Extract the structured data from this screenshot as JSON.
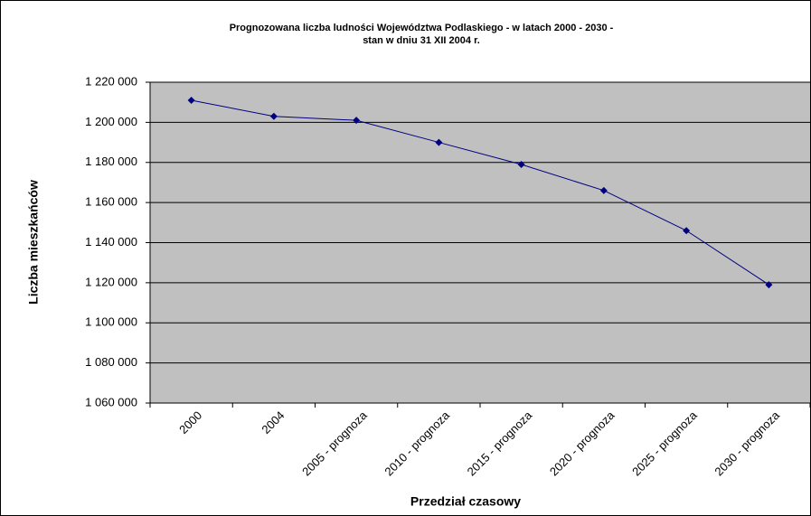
{
  "chart_data": {
    "type": "line",
    "title": [
      "Prognozowana liczba ludności Województwa Podlaskiego - w latach 2000 - 2030 -",
      "stan w dniu 31 XII 2004 r."
    ],
    "x_label": "Przedział czasowy",
    "y_label": "Liczba mieszkańców",
    "categories": [
      "2000",
      "2004",
      "2005 - prognoza",
      "2010 - prognoza",
      "2015 - prognoza",
      "2020 - prognoza",
      "2025 - prognoza",
      "2030 - prognoza"
    ],
    "series": [
      {
        "color": "#000080",
        "values": [
          1211000,
          1203000,
          1201000,
          1190000,
          1179000,
          1166000,
          1146000,
          1119000
        ]
      }
    ],
    "ylim": [
      1060000,
      1220000
    ],
    "yticks": [
      {
        "value": 1060000,
        "label": "1 060 000"
      },
      {
        "value": 1080000,
        "label": "1 080 000"
      },
      {
        "value": 1100000,
        "label": "1 100 000"
      },
      {
        "value": 1120000,
        "label": "1 120 000"
      },
      {
        "value": 1140000,
        "label": "1 140 000"
      },
      {
        "value": 1160000,
        "label": "1 160 000"
      },
      {
        "value": 1180000,
        "label": "1 180 000"
      },
      {
        "value": 1200000,
        "label": "1 200 000"
      },
      {
        "value": 1220000,
        "label": "1 220 000"
      }
    ],
    "grid": true,
    "plot_background": "#c0c0c0"
  }
}
